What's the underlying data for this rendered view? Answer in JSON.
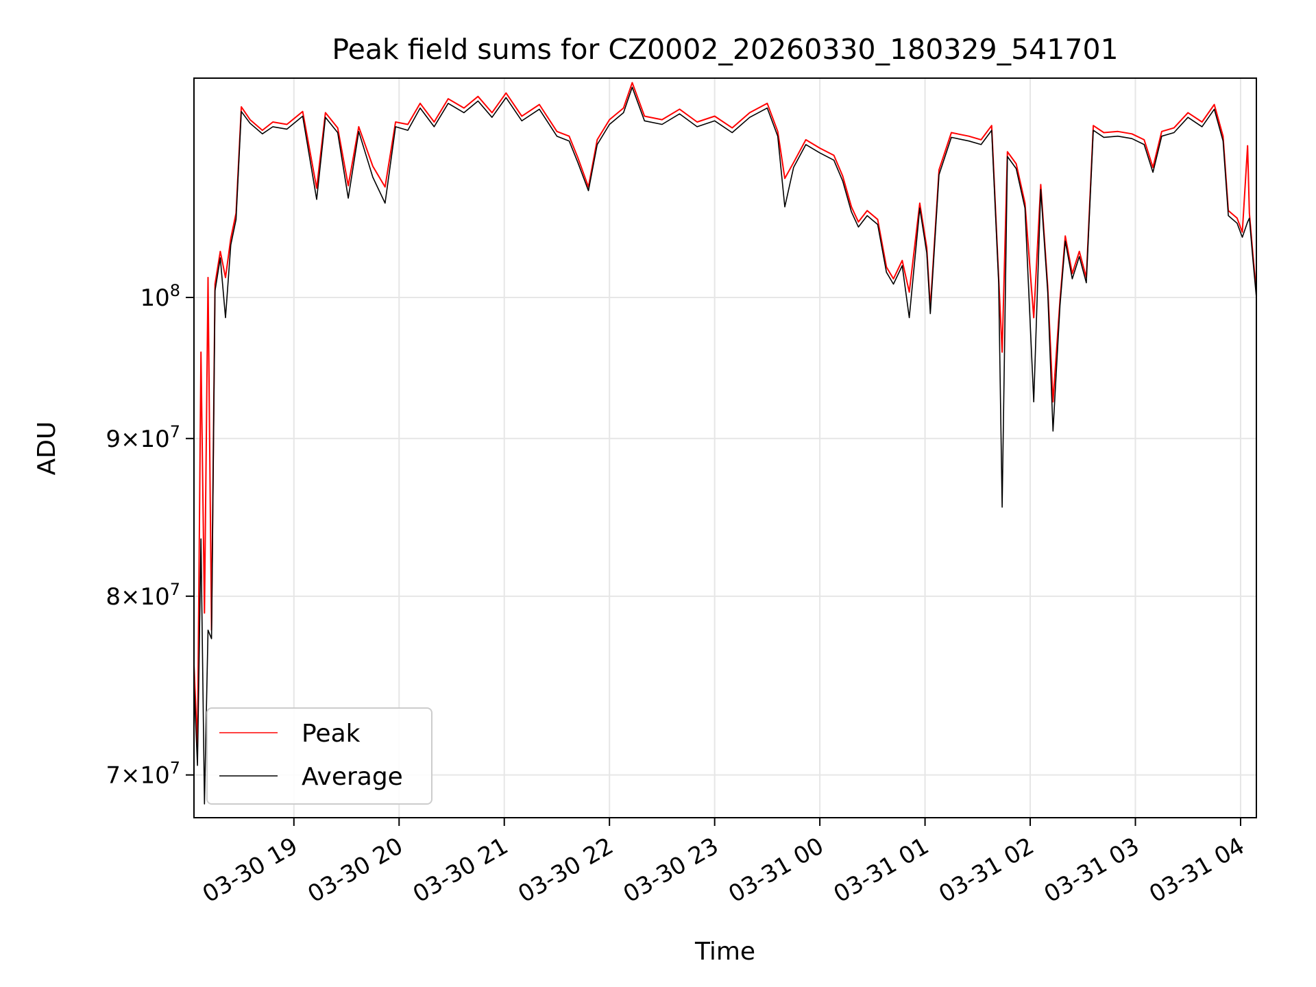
{
  "chart_data": {
    "type": "line",
    "title": "Peak field sums for CZ0002_20260330_180329_541701",
    "xlabel": "Time",
    "ylabel": "ADU",
    "yscale": "log",
    "grid": true,
    "legend_position": "lower-left",
    "xlim": [
      "2026-03-30 18:03",
      "2026-03-31 04:09"
    ],
    "ylim": [
      67800000,
      117800000
    ],
    "x_ticks": [
      {
        "value": "2026-03-30 19:00",
        "label": "03-30 19"
      },
      {
        "value": "2026-03-30 20:00",
        "label": "03-30 20"
      },
      {
        "value": "2026-03-30 21:00",
        "label": "03-30 21"
      },
      {
        "value": "2026-03-30 22:00",
        "label": "03-30 22"
      },
      {
        "value": "2026-03-30 23:00",
        "label": "03-30 23"
      },
      {
        "value": "2026-03-31 00:00",
        "label": "03-31 00"
      },
      {
        "value": "2026-03-31 01:00",
        "label": "03-31 01"
      },
      {
        "value": "2026-03-31 02:00",
        "label": "03-31 02"
      },
      {
        "value": "2026-03-31 03:00",
        "label": "03-31 03"
      },
      {
        "value": "2026-03-31 04:00",
        "label": "03-31 04"
      }
    ],
    "y_ticks": [
      {
        "value": 70000000,
        "mant": "7",
        "base": "10",
        "exp": "7"
      },
      {
        "value": 80000000,
        "mant": "8",
        "base": "10",
        "exp": "7"
      },
      {
        "value": 90000000,
        "mant": "9",
        "base": "10",
        "exp": "7"
      },
      {
        "value": 100000000,
        "mant": "",
        "base": "10",
        "exp": "8"
      }
    ],
    "series": [
      {
        "name": "Peak",
        "color": "#ff0000",
        "points": [
          [
            "2026-03-30 18:03",
            76000000
          ],
          [
            "2026-03-30 18:05",
            71500000
          ],
          [
            "2026-03-30 18:07",
            96000000
          ],
          [
            "2026-03-30 18:09",
            79000000
          ],
          [
            "2026-03-30 18:11",
            101500000
          ],
          [
            "2026-03-30 18:13",
            78000000
          ],
          [
            "2026-03-30 18:15",
            101000000
          ],
          [
            "2026-03-30 18:18",
            103500000
          ],
          [
            "2026-03-30 18:21",
            101500000
          ],
          [
            "2026-03-30 18:24",
            104500000
          ],
          [
            "2026-03-30 18:27",
            106500000
          ],
          [
            "2026-03-30 18:30",
            115300000
          ],
          [
            "2026-03-30 18:35",
            114200000
          ],
          [
            "2026-03-30 18:42",
            113300000
          ],
          [
            "2026-03-30 18:48",
            114000000
          ],
          [
            "2026-03-30 18:56",
            113800000
          ],
          [
            "2026-03-30 19:05",
            114900000
          ],
          [
            "2026-03-30 19:13",
            108500000
          ],
          [
            "2026-03-30 19:18",
            114800000
          ],
          [
            "2026-03-30 19:25",
            113500000
          ],
          [
            "2026-03-30 19:31",
            108700000
          ],
          [
            "2026-03-30 19:37",
            113600000
          ],
          [
            "2026-03-30 19:45",
            110300000
          ],
          [
            "2026-03-30 19:52",
            108600000
          ],
          [
            "2026-03-30 19:58",
            114000000
          ],
          [
            "2026-03-30 20:05",
            113800000
          ],
          [
            "2026-03-30 20:12",
            115600000
          ],
          [
            "2026-03-30 20:20",
            114000000
          ],
          [
            "2026-03-30 20:28",
            116000000
          ],
          [
            "2026-03-30 20:37",
            115200000
          ],
          [
            "2026-03-30 20:45",
            116200000
          ],
          [
            "2026-03-30 20:53",
            114800000
          ],
          [
            "2026-03-30 21:01",
            116500000
          ],
          [
            "2026-03-30 21:10",
            114500000
          ],
          [
            "2026-03-30 21:20",
            115500000
          ],
          [
            "2026-03-30 21:30",
            113200000
          ],
          [
            "2026-03-30 21:37",
            112800000
          ],
          [
            "2026-03-30 21:42",
            111000000
          ],
          [
            "2026-03-30 21:48",
            108600000
          ],
          [
            "2026-03-30 21:53",
            112500000
          ],
          [
            "2026-03-30 22:00",
            114200000
          ],
          [
            "2026-03-30 22:08",
            115200000
          ],
          [
            "2026-03-30 22:13",
            117400000
          ],
          [
            "2026-03-30 22:20",
            114500000
          ],
          [
            "2026-03-30 22:30",
            114200000
          ],
          [
            "2026-03-30 22:40",
            115100000
          ],
          [
            "2026-03-30 22:50",
            114000000
          ],
          [
            "2026-03-30 23:00",
            114500000
          ],
          [
            "2026-03-30 23:10",
            113500000
          ],
          [
            "2026-03-30 23:20",
            114800000
          ],
          [
            "2026-03-30 23:30",
            115600000
          ],
          [
            "2026-03-30 23:36",
            113200000
          ],
          [
            "2026-03-30 23:40",
            109300000
          ],
          [
            "2026-03-30 23:45",
            110600000
          ],
          [
            "2026-03-30 23:52",
            112500000
          ],
          [
            "2026-03-31 00:00",
            111800000
          ],
          [
            "2026-03-31 00:08",
            111200000
          ],
          [
            "2026-03-31 00:13",
            109500000
          ],
          [
            "2026-03-31 00:18",
            107000000
          ],
          [
            "2026-03-31 00:22",
            105800000
          ],
          [
            "2026-03-31 00:27",
            106700000
          ],
          [
            "2026-03-31 00:33",
            106000000
          ],
          [
            "2026-03-31 00:38",
            102300000
          ],
          [
            "2026-03-31 00:42",
            101400000
          ],
          [
            "2026-03-31 00:47",
            102800000
          ],
          [
            "2026-03-31 00:51",
            100400000
          ],
          [
            "2026-03-31 00:57",
            107300000
          ],
          [
            "2026-03-31 01:01",
            103800000
          ],
          [
            "2026-03-31 01:03",
            99200000
          ],
          [
            "2026-03-31 01:08",
            110000000
          ],
          [
            "2026-03-31 01:15",
            113100000
          ],
          [
            "2026-03-31 01:25",
            112800000
          ],
          [
            "2026-03-31 01:32",
            112500000
          ],
          [
            "2026-03-31 01:38",
            113700000
          ],
          [
            "2026-03-31 01:42",
            101500000
          ],
          [
            "2026-03-31 01:44",
            96000000
          ],
          [
            "2026-03-31 01:47",
            111500000
          ],
          [
            "2026-03-31 01:52",
            110500000
          ],
          [
            "2026-03-31 01:57",
            107300000
          ],
          [
            "2026-03-31 02:02",
            98500000
          ],
          [
            "2026-03-31 02:06",
            108800000
          ],
          [
            "2026-03-31 02:10",
            100800000
          ],
          [
            "2026-03-31 02:13",
            92500000
          ],
          [
            "2026-03-31 02:17",
            99800000
          ],
          [
            "2026-03-31 02:20",
            104700000
          ],
          [
            "2026-03-31 02:24",
            101800000
          ],
          [
            "2026-03-31 02:28",
            103500000
          ],
          [
            "2026-03-31 02:32",
            101500000
          ],
          [
            "2026-03-31 02:36",
            113700000
          ],
          [
            "2026-03-31 02:42",
            113100000
          ],
          [
            "2026-03-31 02:50",
            113200000
          ],
          [
            "2026-03-31 02:58",
            113000000
          ],
          [
            "2026-03-31 03:05",
            112500000
          ],
          [
            "2026-03-31 03:10",
            110200000
          ],
          [
            "2026-03-31 03:15",
            113200000
          ],
          [
            "2026-03-31 03:22",
            113500000
          ],
          [
            "2026-03-31 03:30",
            114800000
          ],
          [
            "2026-03-31 03:38",
            114000000
          ],
          [
            "2026-03-31 03:45",
            115500000
          ],
          [
            "2026-03-31 03:50",
            112800000
          ],
          [
            "2026-03-31 03:53",
            106700000
          ],
          [
            "2026-03-31 03:58",
            106100000
          ],
          [
            "2026-03-31 04:01",
            105000000
          ],
          [
            "2026-03-31 04:04",
            112000000
          ],
          [
            "2026-03-31 04:05",
            106500000
          ],
          [
            "2026-03-31 04:07",
            103300000
          ],
          [
            "2026-03-31 04:09",
            100400000
          ]
        ]
      },
      {
        "name": "Average",
        "color": "#000000",
        "points": [
          [
            "2026-03-30 18:03",
            75000000
          ],
          [
            "2026-03-30 18:05",
            70500000
          ],
          [
            "2026-03-30 18:07",
            83500000
          ],
          [
            "2026-03-30 18:09",
            68500000
          ],
          [
            "2026-03-30 18:11",
            78000000
          ],
          [
            "2026-03-30 18:13",
            77500000
          ],
          [
            "2026-03-30 18:15",
            100500000
          ],
          [
            "2026-03-30 18:18",
            103000000
          ],
          [
            "2026-03-30 18:21",
            98500000
          ],
          [
            "2026-03-30 18:24",
            104000000
          ],
          [
            "2026-03-30 18:27",
            106000000
          ],
          [
            "2026-03-30 18:30",
            114900000
          ],
          [
            "2026-03-30 18:35",
            113900000
          ],
          [
            "2026-03-30 18:42",
            113000000
          ],
          [
            "2026-03-30 18:48",
            113600000
          ],
          [
            "2026-03-30 18:56",
            113400000
          ],
          [
            "2026-03-30 19:05",
            114500000
          ],
          [
            "2026-03-30 19:13",
            107600000
          ],
          [
            "2026-03-30 19:18",
            114400000
          ],
          [
            "2026-03-30 19:25",
            113100000
          ],
          [
            "2026-03-30 19:31",
            107700000
          ],
          [
            "2026-03-30 19:37",
            113200000
          ],
          [
            "2026-03-30 19:45",
            109400000
          ],
          [
            "2026-03-30 19:52",
            107300000
          ],
          [
            "2026-03-30 19:58",
            113600000
          ],
          [
            "2026-03-30 20:05",
            113300000
          ],
          [
            "2026-03-30 20:12",
            115200000
          ],
          [
            "2026-03-30 20:20",
            113600000
          ],
          [
            "2026-03-30 20:28",
            115600000
          ],
          [
            "2026-03-30 20:37",
            114800000
          ],
          [
            "2026-03-30 20:45",
            115800000
          ],
          [
            "2026-03-30 20:53",
            114400000
          ],
          [
            "2026-03-30 21:01",
            116100000
          ],
          [
            "2026-03-30 21:10",
            114100000
          ],
          [
            "2026-03-30 21:20",
            115100000
          ],
          [
            "2026-03-30 21:30",
            112800000
          ],
          [
            "2026-03-30 21:37",
            112400000
          ],
          [
            "2026-03-30 21:42",
            110600000
          ],
          [
            "2026-03-30 21:48",
            108300000
          ],
          [
            "2026-03-30 21:53",
            112100000
          ],
          [
            "2026-03-30 22:00",
            113800000
          ],
          [
            "2026-03-30 22:08",
            114800000
          ],
          [
            "2026-03-30 22:13",
            117000000
          ],
          [
            "2026-03-30 22:20",
            114100000
          ],
          [
            "2026-03-30 22:30",
            113800000
          ],
          [
            "2026-03-30 22:40",
            114700000
          ],
          [
            "2026-03-30 22:50",
            113600000
          ],
          [
            "2026-03-30 23:00",
            114100000
          ],
          [
            "2026-03-30 23:10",
            113100000
          ],
          [
            "2026-03-30 23:20",
            114400000
          ],
          [
            "2026-03-30 23:30",
            115200000
          ],
          [
            "2026-03-30 23:36",
            112800000
          ],
          [
            "2026-03-30 23:40",
            107000000
          ],
          [
            "2026-03-30 23:45",
            110200000
          ],
          [
            "2026-03-30 23:52",
            112100000
          ],
          [
            "2026-03-31 00:00",
            111400000
          ],
          [
            "2026-03-31 00:08",
            110800000
          ],
          [
            "2026-03-31 00:13",
            109100000
          ],
          [
            "2026-03-31 00:18",
            106600000
          ],
          [
            "2026-03-31 00:22",
            105400000
          ],
          [
            "2026-03-31 00:27",
            106300000
          ],
          [
            "2026-03-31 00:33",
            105600000
          ],
          [
            "2026-03-31 00:38",
            101900000
          ],
          [
            "2026-03-31 00:42",
            101000000
          ],
          [
            "2026-03-31 00:47",
            102400000
          ],
          [
            "2026-03-31 00:51",
            98500000
          ],
          [
            "2026-03-31 00:57",
            106900000
          ],
          [
            "2026-03-31 01:01",
            103400000
          ],
          [
            "2026-03-31 01:03",
            98800000
          ],
          [
            "2026-03-31 01:08",
            109600000
          ],
          [
            "2026-03-31 01:15",
            112700000
          ],
          [
            "2026-03-31 01:25",
            112400000
          ],
          [
            "2026-03-31 01:32",
            112100000
          ],
          [
            "2026-03-31 01:38",
            113300000
          ],
          [
            "2026-03-31 01:42",
            101100000
          ],
          [
            "2026-03-31 01:44",
            85500000
          ],
          [
            "2026-03-31 01:47",
            111100000
          ],
          [
            "2026-03-31 01:52",
            110100000
          ],
          [
            "2026-03-31 01:57",
            106900000
          ],
          [
            "2026-03-31 02:02",
            92500000
          ],
          [
            "2026-03-31 02:06",
            108400000
          ],
          [
            "2026-03-31 02:10",
            100400000
          ],
          [
            "2026-03-31 02:13",
            90500000
          ],
          [
            "2026-03-31 02:17",
            99400000
          ],
          [
            "2026-03-31 02:20",
            104300000
          ],
          [
            "2026-03-31 02:24",
            101400000
          ],
          [
            "2026-03-31 02:28",
            103100000
          ],
          [
            "2026-03-31 02:32",
            101100000
          ],
          [
            "2026-03-31 02:36",
            113300000
          ],
          [
            "2026-03-31 02:42",
            112700000
          ],
          [
            "2026-03-31 02:50",
            112800000
          ],
          [
            "2026-03-31 02:58",
            112600000
          ],
          [
            "2026-03-31 03:05",
            112100000
          ],
          [
            "2026-03-31 03:10",
            109800000
          ],
          [
            "2026-03-31 03:15",
            112800000
          ],
          [
            "2026-03-31 03:22",
            113100000
          ],
          [
            "2026-03-31 03:30",
            114400000
          ],
          [
            "2026-03-31 03:38",
            113600000
          ],
          [
            "2026-03-31 03:45",
            115100000
          ],
          [
            "2026-03-31 03:50",
            112400000
          ],
          [
            "2026-03-31 03:53",
            106300000
          ],
          [
            "2026-03-31 03:58",
            105700000
          ],
          [
            "2026-03-31 04:01",
            104600000
          ],
          [
            "2026-03-31 04:04",
            105800000
          ],
          [
            "2026-03-31 04:05",
            106100000
          ],
          [
            "2026-03-31 04:07",
            102900000
          ],
          [
            "2026-03-31 04:09",
            100000000
          ]
        ]
      }
    ]
  }
}
